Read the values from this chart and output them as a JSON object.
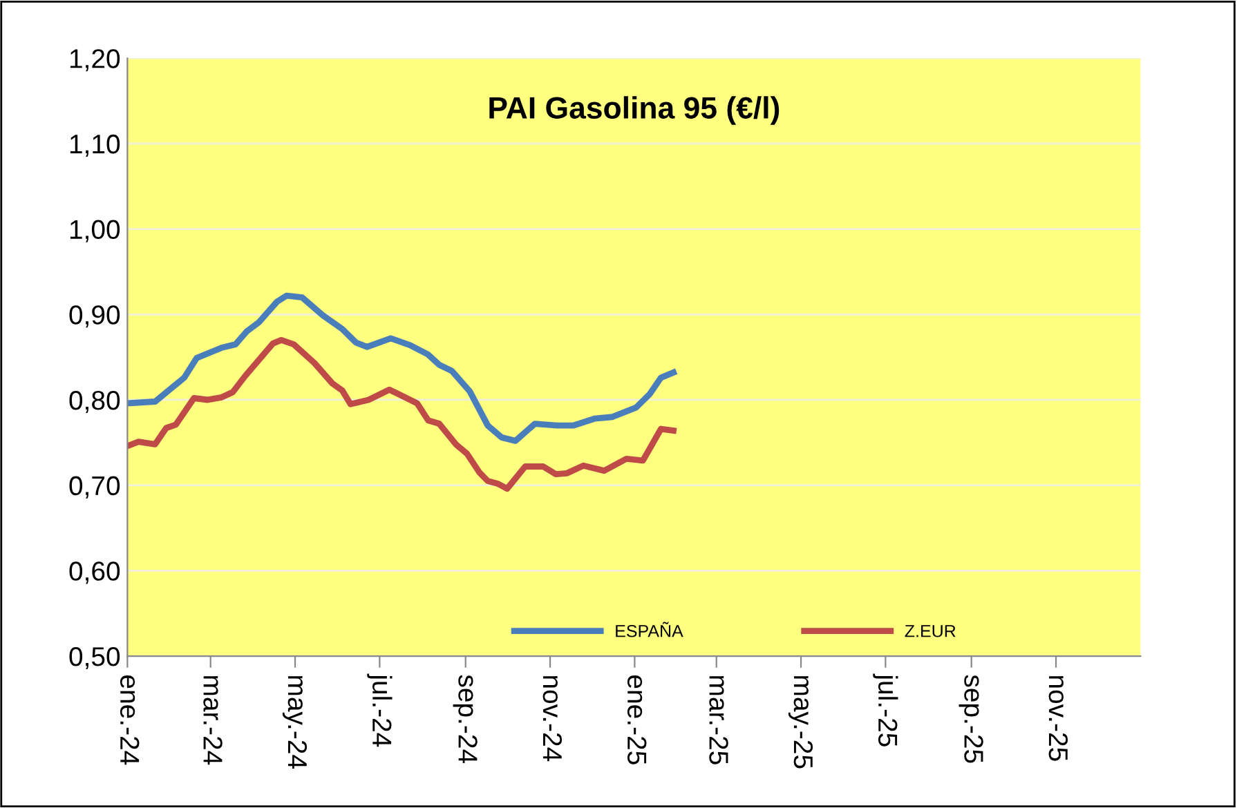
{
  "chart_data": {
    "type": "line",
    "title": "PAI Gasolina 95 (€/l)",
    "series": [
      {
        "name": "ESPAÑA",
        "color": "#4a7ebb",
        "x": [
          "2024-01-01",
          "2024-01-21",
          "2024-02-11",
          "2024-02-20",
          "2024-03-09",
          "2024-03-19",
          "2024-03-27",
          "2024-04-05",
          "2024-04-18",
          "2024-04-25",
          "2024-05-06",
          "2024-05-21",
          "2024-06-04",
          "2024-06-14",
          "2024-06-22",
          "2024-07-09",
          "2024-07-23",
          "2024-08-05",
          "2024-08-13",
          "2024-08-22",
          "2024-09-04",
          "2024-09-17",
          "2024-09-27",
          "2024-10-07",
          "2024-10-21",
          "2024-11-06",
          "2024-11-18",
          "2024-12-03",
          "2024-12-16",
          "2025-01-02",
          "2025-01-12",
          "2025-01-20",
          "2025-01-29"
        ],
        "values": [
          0.796,
          0.798,
          0.826,
          0.849,
          0.861,
          0.865,
          0.88,
          0.891,
          0.915,
          0.922,
          0.92,
          0.899,
          0.883,
          0.867,
          0.862,
          0.872,
          0.864,
          0.853,
          0.841,
          0.834,
          0.81,
          0.77,
          0.756,
          0.752,
          0.772,
          0.77,
          0.77,
          0.778,
          0.78,
          0.791,
          0.807,
          0.826,
          0.832
        ]
      },
      {
        "name": "Z.EUR",
        "color": "#be4b48",
        "x": [
          "2024-01-01",
          "2024-01-09",
          "2024-01-21",
          "2024-01-29",
          "2024-02-05",
          "2024-02-18",
          "2024-02-28",
          "2024-03-09",
          "2024-03-17",
          "2024-03-26",
          "2024-04-05",
          "2024-04-15",
          "2024-04-21",
          "2024-04-30",
          "2024-05-15",
          "2024-05-28",
          "2024-06-04",
          "2024-06-10",
          "2024-06-23",
          "2024-07-08",
          "2024-07-18",
          "2024-07-28",
          "2024-08-05",
          "2024-08-13",
          "2024-08-25",
          "2024-09-02",
          "2024-09-11",
          "2024-09-17",
          "2024-09-24",
          "2024-10-01",
          "2024-10-14",
          "2024-10-27",
          "2024-11-05",
          "2024-11-13",
          "2024-11-25",
          "2024-12-10",
          "2024-12-26",
          "2025-01-07",
          "2025-01-20",
          "2025-01-29"
        ],
        "values": [
          0.746,
          0.751,
          0.748,
          0.767,
          0.771,
          0.802,
          0.8,
          0.803,
          0.809,
          0.828,
          0.847,
          0.866,
          0.87,
          0.865,
          0.843,
          0.819,
          0.811,
          0.795,
          0.8,
          0.812,
          0.804,
          0.796,
          0.776,
          0.772,
          0.748,
          0.737,
          0.715,
          0.705,
          0.702,
          0.696,
          0.722,
          0.722,
          0.713,
          0.714,
          0.723,
          0.717,
          0.731,
          0.729,
          0.766,
          0.764
        ]
      }
    ],
    "xlim": [
      "2024-01-01",
      "2026-01-01"
    ],
    "xticks": [
      {
        "value": "2024-01-01",
        "label": "ene.-24"
      },
      {
        "value": "2024-03-01",
        "label": "mar.-24"
      },
      {
        "value": "2024-05-01",
        "label": "may.-24"
      },
      {
        "value": "2024-07-01",
        "label": "jul.-24"
      },
      {
        "value": "2024-09-01",
        "label": "sep.-24"
      },
      {
        "value": "2024-11-01",
        "label": "nov.-24"
      },
      {
        "value": "2025-01-01",
        "label": "ene.-25"
      },
      {
        "value": "2025-03-01",
        "label": "mar.-25"
      },
      {
        "value": "2025-05-01",
        "label": "may.-25"
      },
      {
        "value": "2025-07-01",
        "label": "jul.-25"
      },
      {
        "value": "2025-09-01",
        "label": "sep.-25"
      },
      {
        "value": "2025-11-01",
        "label": "nov.-25"
      }
    ],
    "ylim": [
      0.5,
      1.2
    ],
    "yticks": [
      {
        "value": 0.5,
        "label": "0,50"
      },
      {
        "value": 0.6,
        "label": "0,60"
      },
      {
        "value": 0.7,
        "label": "0,70"
      },
      {
        "value": 0.8,
        "label": "0,80"
      },
      {
        "value": 0.9,
        "label": "0,90"
      },
      {
        "value": 1.0,
        "label": "1,00"
      },
      {
        "value": 1.1,
        "label": "1,10"
      },
      {
        "value": 1.2,
        "label": "1,20"
      }
    ],
    "grid": "y",
    "legend": "bottom",
    "marker": "none",
    "line_style": "solid"
  }
}
